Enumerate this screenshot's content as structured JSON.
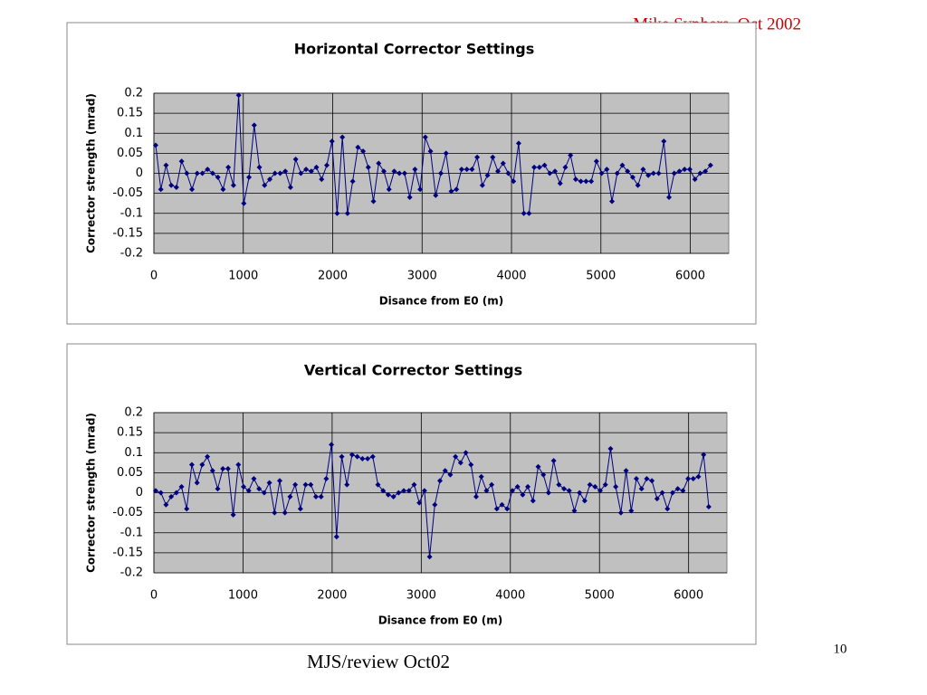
{
  "header": {
    "author": "Mike Syphers, Oct 2002"
  },
  "footer": {
    "text": "MJS/review Oct02",
    "page": "10"
  },
  "chart_data": [
    {
      "type": "line",
      "title": "Horizontal Corrector Settings",
      "x_label": "Disance from E0 (m)",
      "y_label": "Corrector strength (mrad)",
      "xlim": [
        0,
        6430
      ],
      "xticks": [
        0,
        1000,
        2000,
        3000,
        4000,
        5000,
        6000
      ],
      "ylim": [
        -0.2,
        0.2
      ],
      "yticks": [
        0.2,
        0.15,
        0.1,
        0.05,
        0,
        -0.05,
        -0.1,
        -0.15,
        -0.2
      ],
      "grid": true,
      "background": "#c0c0c0",
      "x": [
        20,
        78,
        136,
        194,
        252,
        310,
        368,
        426,
        484,
        542,
        600,
        658,
        716,
        774,
        832,
        890,
        948,
        1006,
        1064,
        1122,
        1180,
        1238,
        1296,
        1354,
        1412,
        1470,
        1528,
        1586,
        1644,
        1702,
        1760,
        1818,
        1876,
        1934,
        1992,
        2050,
        2108,
        2166,
        2224,
        2282,
        2340,
        2398,
        2456,
        2514,
        2572,
        2630,
        2688,
        2746,
        2804,
        2862,
        2920,
        2978,
        3036,
        3094,
        3152,
        3210,
        3268,
        3326,
        3384,
        3442,
        3500,
        3558,
        3616,
        3674,
        3732,
        3790,
        3848,
        3906,
        3964,
        4022,
        4080,
        4138,
        4196,
        4254,
        4312,
        4370,
        4428,
        4486,
        4544,
        4602,
        4660,
        4718,
        4776,
        4834,
        4892,
        4950,
        5008,
        5066,
        5124,
        5182,
        5240,
        5298,
        5356,
        5414,
        5472,
        5530,
        5588,
        5646,
        5704,
        5762,
        5820,
        5878,
        5936,
        5994,
        6052,
        6110,
        6168,
        6226
      ],
      "series": [
        {
          "color": "#000080",
          "values": [
            0.07,
            -0.04,
            0.02,
            -0.03,
            -0.035,
            0.03,
            0.0,
            -0.04,
            0.0,
            0.0,
            0.01,
            0.0,
            -0.01,
            -0.04,
            0.015,
            -0.03,
            0.195,
            -0.075,
            -0.01,
            0.12,
            0.015,
            -0.03,
            -0.015,
            0.0,
            0.0,
            0.005,
            -0.035,
            0.035,
            0.0,
            0.01,
            0.005,
            0.015,
            -0.015,
            0.02,
            0.08,
            -0.1,
            0.09,
            -0.1,
            -0.02,
            0.065,
            0.055,
            0.015,
            -0.07,
            0.025,
            0.005,
            -0.04,
            0.005,
            0.0,
            0.0,
            -0.06,
            0.01,
            -0.04,
            0.09,
            0.055,
            -0.055,
            0.0,
            0.05,
            -0.045,
            -0.04,
            0.01,
            0.01,
            0.01,
            0.04,
            -0.03,
            -0.005,
            0.04,
            0.005,
            0.025,
            0.0,
            -0.02,
            0.075,
            -0.1,
            -0.1,
            0.015,
            0.015,
            0.02,
            0.0,
            0.005,
            -0.025,
            0.015,
            0.045,
            -0.015,
            -0.02,
            -0.02,
            -0.02,
            0.03,
            0.0,
            0.01,
            -0.07,
            0.0,
            0.02,
            0.005,
            -0.01,
            -0.03,
            0.01,
            -0.005,
            0.0,
            0.0,
            0.08,
            -0.06,
            0.0,
            0.005,
            0.01,
            0.01,
            -0.015,
            0.0,
            0.005,
            0.02
          ]
        }
      ]
    },
    {
      "type": "line",
      "title": "Vertical Corrector Settings",
      "x_label": "Disance from E0 (m)",
      "y_label": "Corrector strength (mrad)",
      "xlim": [
        0,
        6430
      ],
      "xticks": [
        0,
        1000,
        2000,
        3000,
        4000,
        5000,
        6000
      ],
      "ylim": [
        -0.2,
        0.2
      ],
      "yticks": [
        0.2,
        0.15,
        0.1,
        0.05,
        0,
        -0.05,
        -0.1,
        -0.15,
        -0.2
      ],
      "grid": true,
      "background": "#c0c0c0",
      "x": [
        20,
        78,
        136,
        194,
        252,
        310,
        368,
        426,
        484,
        542,
        600,
        658,
        716,
        774,
        832,
        890,
        948,
        1006,
        1064,
        1122,
        1180,
        1238,
        1296,
        1354,
        1412,
        1470,
        1528,
        1586,
        1644,
        1702,
        1760,
        1818,
        1876,
        1934,
        1992,
        2050,
        2108,
        2166,
        2224,
        2282,
        2340,
        2398,
        2456,
        2514,
        2572,
        2630,
        2688,
        2746,
        2804,
        2862,
        2920,
        2978,
        3036,
        3094,
        3152,
        3210,
        3268,
        3326,
        3384,
        3442,
        3500,
        3558,
        3616,
        3674,
        3732,
        3790,
        3848,
        3906,
        3964,
        4022,
        4080,
        4138,
        4196,
        4254,
        4312,
        4370,
        4428,
        4486,
        4544,
        4602,
        4660,
        4718,
        4776,
        4834,
        4892,
        4950,
        5008,
        5066,
        5124,
        5182,
        5240,
        5298,
        5356,
        5414,
        5472,
        5530,
        5588,
        5646,
        5704,
        5762,
        5820,
        5878,
        5936,
        5994,
        6052,
        6110,
        6168,
        6226
      ],
      "series": [
        {
          "color": "#000080",
          "values": [
            0.005,
            0.0,
            -0.03,
            -0.01,
            0.0,
            0.015,
            -0.04,
            0.07,
            0.025,
            0.07,
            0.09,
            0.055,
            0.01,
            0.06,
            0.06,
            -0.055,
            0.07,
            0.015,
            0.005,
            0.035,
            0.01,
            0.0,
            0.025,
            -0.05,
            0.03,
            -0.05,
            -0.01,
            0.02,
            -0.04,
            0.02,
            0.02,
            -0.01,
            -0.01,
            0.035,
            0.12,
            -0.11,
            0.09,
            0.02,
            0.095,
            0.09,
            0.085,
            0.085,
            0.09,
            0.02,
            0.005,
            -0.005,
            -0.01,
            0.0,
            0.005,
            0.005,
            0.02,
            -0.025,
            0.005,
            -0.16,
            -0.03,
            0.03,
            0.055,
            0.045,
            0.09,
            0.075,
            0.1,
            0.07,
            -0.01,
            0.04,
            0.005,
            0.02,
            -0.04,
            -0.03,
            -0.04,
            0.005,
            0.015,
            -0.005,
            0.015,
            -0.02,
            0.065,
            0.045,
            0.0,
            0.08,
            0.02,
            0.01,
            0.005,
            -0.045,
            0.0,
            -0.02,
            0.02,
            0.015,
            0.005,
            0.02,
            0.11,
            0.015,
            -0.05,
            0.055,
            -0.045,
            0.035,
            0.01,
            0.035,
            0.03,
            -0.015,
            0.0,
            -0.04,
            0.0,
            0.01,
            0.005,
            0.035,
            0.035,
            0.04,
            0.095,
            -0.035
          ]
        }
      ]
    }
  ]
}
